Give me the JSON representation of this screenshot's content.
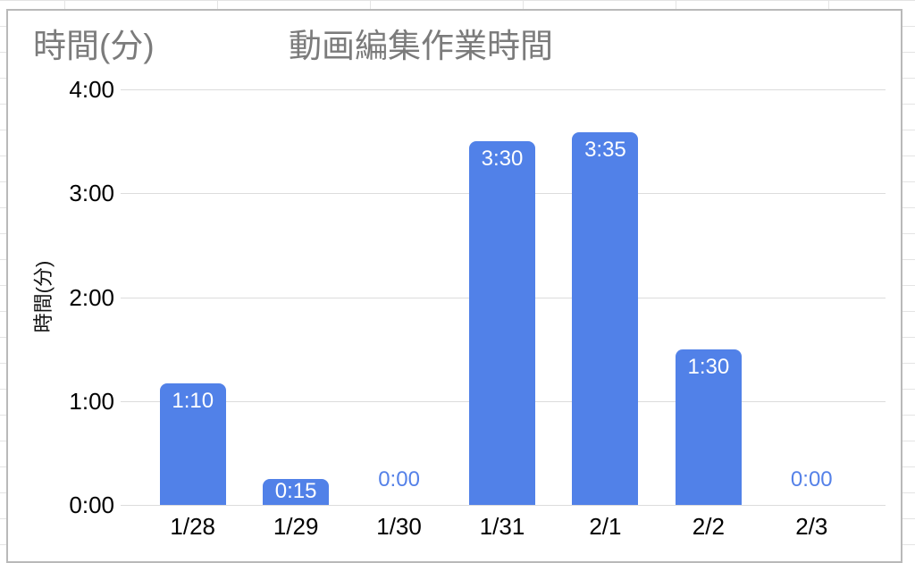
{
  "chart_data": {
    "type": "bar",
    "title": "動画編集作業時間",
    "y_axis_title_top_left": "時間(分)",
    "ylabel": "時間(分)",
    "xlabel": "",
    "categories": [
      "1/28",
      "1/29",
      "1/30",
      "1/31",
      "2/1",
      "2/2",
      "2/3"
    ],
    "value_labels": [
      "1:10",
      "0:15",
      "0:00",
      "3:30",
      "3:35",
      "1:30",
      "0:00"
    ],
    "values_hours": [
      1.1667,
      0.25,
      0,
      3.5,
      3.5833,
      1.5,
      0
    ],
    "y_ticks": [
      "4:00",
      "3:00",
      "2:00",
      "1:00",
      "0:00"
    ],
    "ylim": [
      0,
      4
    ],
    "grid": true,
    "legend_position": "none",
    "colors": {
      "bar": "#5181e8",
      "value_label_on_bar": "#ffffff",
      "value_label_zero": "#5581e8",
      "gridline": "#dcdcdc",
      "title_text": "#7b7b7b",
      "axis_text": "#000000"
    }
  }
}
